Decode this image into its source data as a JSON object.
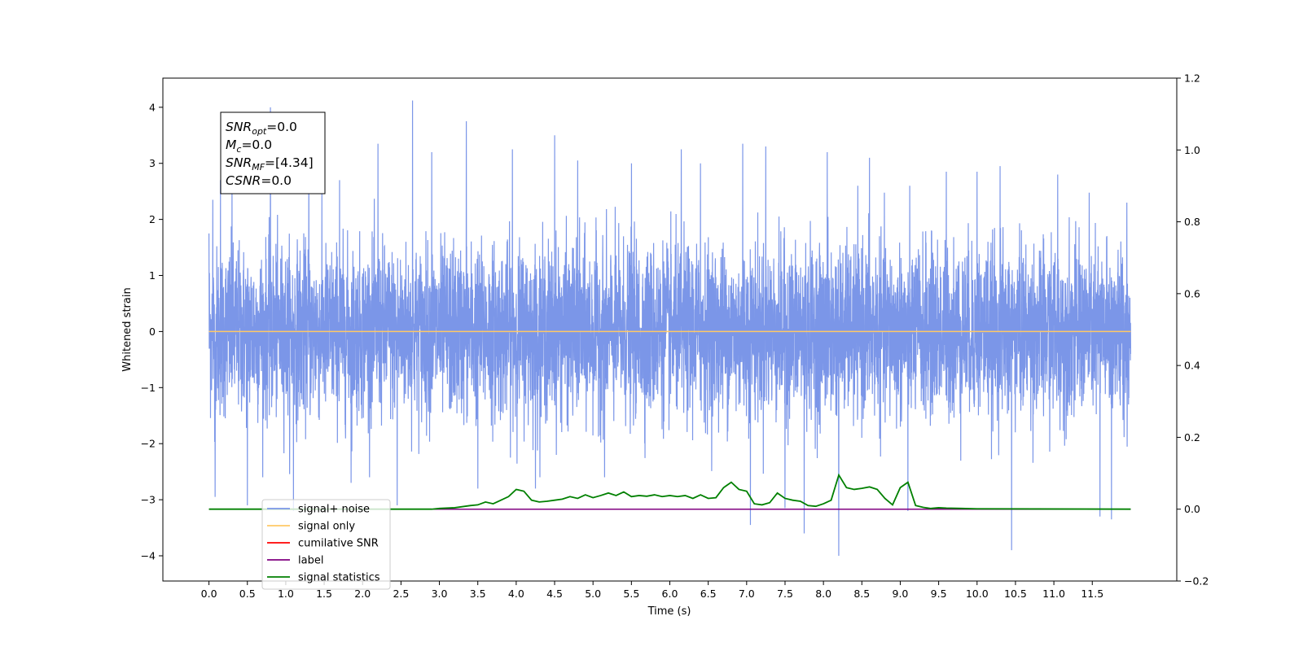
{
  "chart_data": {
    "type": "line",
    "xlabel": "Time (s)",
    "ylabel": "Whitened strain",
    "xlim": [
      -0.6,
      12.6
    ],
    "ylim": [
      -4.45,
      4.52
    ],
    "y2lim": [
      -0.2,
      1.2
    ],
    "xticks": [
      "0.0",
      "0.5",
      "1.0",
      "1.5",
      "2.0",
      "2.5",
      "3.0",
      "3.5",
      "4.0",
      "4.5",
      "5.0",
      "5.5",
      "6.0",
      "6.5",
      "7.0",
      "7.5",
      "8.0",
      "8.5",
      "9.0",
      "9.5",
      "10.0",
      "10.5",
      "11.0",
      "11.5"
    ],
    "yticks": [
      "4",
      "3",
      "2",
      "1",
      "0",
      "−1",
      "−2",
      "−3",
      "−4"
    ],
    "y2ticks": [
      "1.2",
      "1.0",
      "0.8",
      "0.6",
      "0.4",
      "0.2",
      "0.0",
      "−0.2"
    ],
    "annotation": {
      "lines": [
        {
          "base": "SNR",
          "sub": "opt",
          "rest": "=0.0"
        },
        {
          "base": "M",
          "sub": "c",
          "rest": "=0.0"
        },
        {
          "base": "SNR",
          "sub": "MF",
          "rest": "=[4.34]"
        },
        {
          "base": "CSNR",
          "sub": "",
          "rest": "=0.0"
        }
      ]
    },
    "legend": {
      "placement": "lower-left",
      "entries": [
        {
          "label": "signal+ noise",
          "color": "#7b96e8"
        },
        {
          "label": "signal only",
          "color": "#ffc966"
        },
        {
          "label": "cumilative SNR",
          "color": "#ff0000"
        },
        {
          "label": "label",
          "color": "#800080"
        },
        {
          "label": "signal statistics",
          "color": "#008000"
        }
      ]
    },
    "series": [
      {
        "name": "signal+ noise",
        "axis": "left",
        "color": "#7b96e8",
        "description_x_range": [
          0.0,
          12.0
        ],
        "noise_sigma": 0.75,
        "spikes": [
          [
            0.0,
            1.75
          ],
          [
            0.05,
            2.35
          ],
          [
            0.08,
            -2.95
          ],
          [
            0.15,
            2.7
          ],
          [
            0.3,
            3.0
          ],
          [
            0.5,
            -3.1
          ],
          [
            0.8,
            4.0
          ],
          [
            1.1,
            -3.2
          ],
          [
            1.3,
            3.2
          ],
          [
            1.7,
            2.7
          ],
          [
            1.85,
            -2.7
          ],
          [
            2.2,
            3.35
          ],
          [
            2.45,
            -3.1
          ],
          [
            2.65,
            4.12
          ],
          [
            2.9,
            3.2
          ],
          [
            3.35,
            3.75
          ],
          [
            3.5,
            -2.8
          ],
          [
            3.95,
            3.25
          ],
          [
            4.25,
            -2.8
          ],
          [
            4.5,
            3.5
          ],
          [
            4.8,
            3.05
          ],
          [
            5.15,
            -2.6
          ],
          [
            5.5,
            3.0
          ],
          [
            6.15,
            3.25
          ],
          [
            6.4,
            3.0
          ],
          [
            6.95,
            3.35
          ],
          [
            7.05,
            -3.45
          ],
          [
            7.25,
            3.3
          ],
          [
            7.5,
            -3.15
          ],
          [
            7.75,
            -3.6
          ],
          [
            8.05,
            3.2
          ],
          [
            8.2,
            -4.0
          ],
          [
            8.6,
            3.1
          ],
          [
            9.1,
            -3.2
          ],
          [
            9.6,
            2.85
          ],
          [
            10.0,
            2.85
          ],
          [
            10.3,
            2.95
          ],
          [
            10.45,
            -3.9
          ],
          [
            11.05,
            2.8
          ],
          [
            11.6,
            -3.3
          ],
          [
            11.75,
            -3.35
          ],
          [
            11.95,
            2.3
          ]
        ]
      },
      {
        "name": "signal only",
        "axis": "left",
        "color": "#ffc966",
        "x": [
          0.0,
          12.0
        ],
        "y": [
          0.0,
          0.0
        ]
      },
      {
        "name": "label",
        "axis": "right",
        "color": "#800080",
        "x": [
          0.0,
          12.0
        ],
        "y": [
          0.0,
          0.0
        ]
      },
      {
        "name": "signal statistics",
        "axis": "right",
        "color": "#008000",
        "x": [
          0.0,
          2.9,
          3.0,
          3.2,
          3.4,
          3.5,
          3.6,
          3.7,
          3.8,
          3.9,
          4.0,
          4.1,
          4.2,
          4.3,
          4.4,
          4.5,
          4.6,
          4.7,
          4.8,
          4.9,
          5.0,
          5.1,
          5.2,
          5.3,
          5.4,
          5.5,
          5.6,
          5.7,
          5.8,
          5.9,
          6.0,
          6.1,
          6.2,
          6.3,
          6.4,
          6.5,
          6.6,
          6.7,
          6.8,
          6.9,
          7.0,
          7.1,
          7.2,
          7.3,
          7.4,
          7.5,
          7.6,
          7.7,
          7.8,
          7.9,
          8.0,
          8.1,
          8.2,
          8.3,
          8.4,
          8.5,
          8.6,
          8.7,
          8.8,
          8.9,
          9.0,
          9.1,
          9.2,
          9.3,
          9.4,
          9.5,
          9.6,
          9.8,
          10.0,
          12.0
        ],
        "y": [
          0.0,
          0.0,
          0.002,
          0.004,
          0.01,
          0.012,
          0.02,
          0.015,
          0.025,
          0.035,
          0.055,
          0.05,
          0.025,
          0.02,
          0.022,
          0.025,
          0.028,
          0.035,
          0.03,
          0.04,
          0.032,
          0.038,
          0.045,
          0.038,
          0.048,
          0.035,
          0.038,
          0.036,
          0.04,
          0.035,
          0.038,
          0.035,
          0.038,
          0.03,
          0.04,
          0.03,
          0.032,
          0.06,
          0.075,
          0.055,
          0.05,
          0.015,
          0.012,
          0.018,
          0.045,
          0.03,
          0.025,
          0.022,
          0.01,
          0.008,
          0.015,
          0.025,
          0.095,
          0.06,
          0.055,
          0.058,
          0.062,
          0.055,
          0.03,
          0.012,
          0.06,
          0.075,
          0.01,
          0.005,
          0.002,
          0.004,
          0.003,
          0.002,
          0.001,
          0.0
        ]
      }
    ]
  }
}
